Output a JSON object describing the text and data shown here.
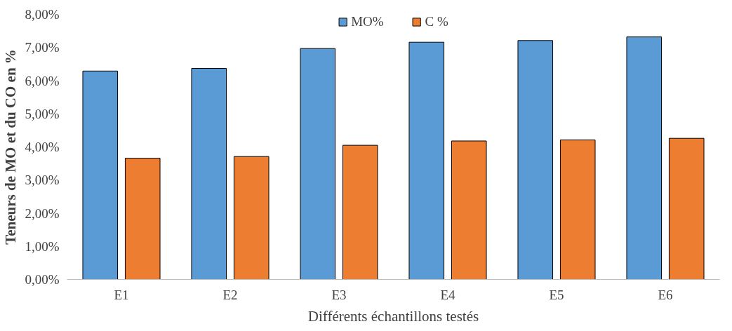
{
  "chart_data": {
    "type": "bar",
    "xlabel": "Différents échantillons testés",
    "ylabel": "Teneurs de MO et du CO en %",
    "categories": [
      "E1",
      "E2",
      "E3",
      "E4",
      "E5",
      "E6"
    ],
    "series": [
      {
        "name": "MO%",
        "color": "#5b9bd5",
        "values": [
          6.29,
          6.37,
          6.97,
          7.16,
          7.21,
          7.32
        ]
      },
      {
        "name": "C %",
        "color": "#ed7d31",
        "values": [
          3.66,
          3.71,
          4.05,
          4.18,
          4.21,
          4.26
        ]
      }
    ],
    "ylim": [
      0,
      8
    ],
    "yticks": [
      {
        "value": 0,
        "label": "0,00%"
      },
      {
        "value": 1,
        "label": "1,00%"
      },
      {
        "value": 2,
        "label": "2,00%"
      },
      {
        "value": 3,
        "label": "3,00%"
      },
      {
        "value": 4,
        "label": "4,00%"
      },
      {
        "value": 5,
        "label": "5,00%"
      },
      {
        "value": 6,
        "label": "6,00%"
      },
      {
        "value": 7,
        "label": "7,00%"
      },
      {
        "value": 8,
        "label": "8,00%"
      }
    ],
    "grid": false,
    "legend": "top"
  }
}
